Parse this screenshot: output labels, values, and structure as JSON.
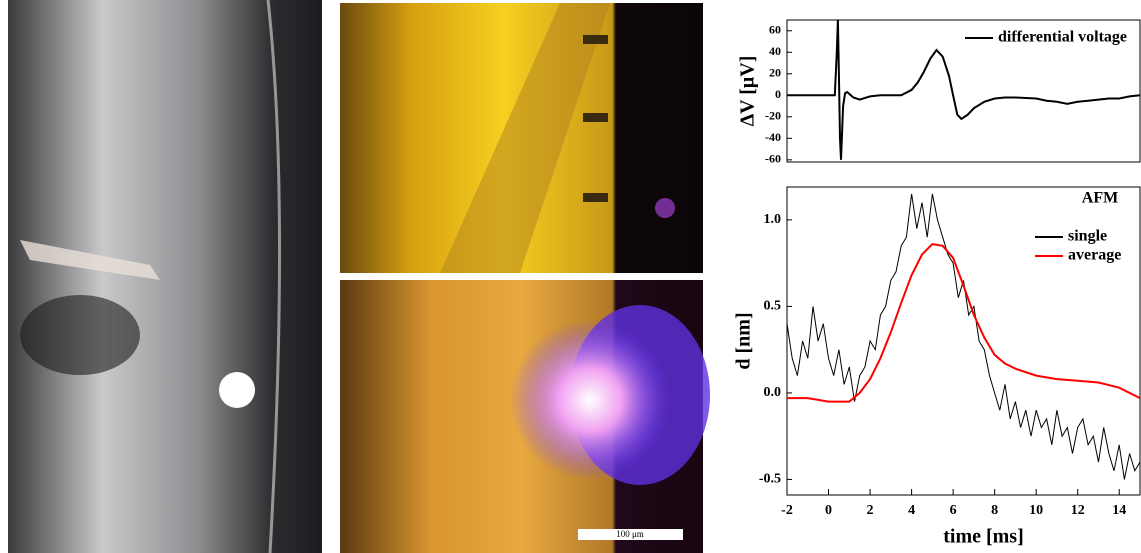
{
  "images": {
    "scale_bar_label": "100 μm"
  },
  "chart_data": [
    {
      "type": "line",
      "y_label": "ΔV [μV]",
      "xlim": [
        -2,
        15
      ],
      "ylim": [
        -62,
        70
      ],
      "yticks": [
        60,
        40,
        20,
        0,
        -20,
        -40,
        -60
      ],
      "legend": "upper right",
      "series": [
        {
          "name": "differential voltage",
          "color": "#000000",
          "x": [
            -2,
            -1,
            0,
            0.3,
            0.4,
            0.45,
            0.5,
            0.55,
            0.6,
            0.7,
            0.8,
            0.9,
            1.2,
            1.5,
            2,
            2.5,
            3,
            3.5,
            4,
            4.3,
            4.6,
            4.9,
            5.2,
            5.5,
            5.8,
            6,
            6.2,
            6.4,
            6.7,
            7,
            7.5,
            8,
            8.5,
            9,
            10,
            10.5,
            11,
            11.5,
            12,
            12.5,
            13,
            13.5,
            14,
            14.5,
            15
          ],
          "values": [
            0,
            0,
            0,
            0,
            40,
            70,
            20,
            -40,
            -60,
            -10,
            2,
            3,
            -2,
            -4,
            -1,
            0,
            0,
            0,
            5,
            12,
            22,
            34,
            42,
            36,
            18,
            0,
            -18,
            -22,
            -18,
            -12,
            -6,
            -3,
            -2,
            -2,
            -3,
            -5,
            -6,
            -8,
            -6,
            -5,
            -4,
            -3,
            -3,
            -1,
            0
          ]
        }
      ]
    },
    {
      "type": "line",
      "y_label": "d [nm]",
      "x_label": "time [ms]",
      "annotation": "AFM",
      "xlim": [
        -2,
        15
      ],
      "ylim": [
        -0.59,
        1.19
      ],
      "xticks": [
        -2,
        0,
        2,
        4,
        6,
        8,
        10,
        12,
        14
      ],
      "yticks": [
        -0.5,
        {
          "value": 0,
          "label": "0.0"
        },
        0.5,
        {
          "value": 1,
          "label": "1.0"
        }
      ],
      "legend": "upper right",
      "series": [
        {
          "name": "single",
          "color": "#000000",
          "x": [
            -2,
            -1.75,
            -1.5,
            -1.25,
            -1,
            -0.75,
            -0.5,
            -0.25,
            0,
            0.25,
            0.5,
            0.75,
            1,
            1.25,
            1.5,
            1.75,
            2,
            2.25,
            2.5,
            2.75,
            3,
            3.25,
            3.5,
            3.75,
            4,
            4.25,
            4.5,
            4.75,
            5,
            5.25,
            5.5,
            5.75,
            6,
            6.25,
            6.5,
            6.75,
            7,
            7.25,
            7.5,
            7.75,
            8,
            8.25,
            8.5,
            8.75,
            9,
            9.25,
            9.5,
            9.75,
            10,
            10.25,
            10.5,
            10.75,
            11,
            11.25,
            11.5,
            11.75,
            12,
            12.25,
            12.5,
            12.75,
            13,
            13.25,
            13.5,
            13.75,
            14,
            14.25,
            14.5,
            14.75,
            15
          ],
          "values": [
            0.4,
            0.2,
            0.1,
            0.3,
            0.2,
            0.5,
            0.3,
            0.4,
            0.2,
            0.1,
            0.25,
            0.05,
            0.15,
            -0.05,
            0.1,
            0.15,
            0.3,
            0.25,
            0.45,
            0.5,
            0.65,
            0.7,
            0.85,
            0.9,
            1.15,
            0.95,
            1.1,
            0.9,
            1.15,
            1.0,
            0.9,
            0.8,
            0.75,
            0.55,
            0.65,
            0.45,
            0.5,
            0.3,
            0.25,
            0.1,
            0.0,
            -0.1,
            0.05,
            -0.15,
            -0.05,
            -0.2,
            -0.1,
            -0.25,
            -0.1,
            -0.2,
            -0.15,
            -0.3,
            -0.1,
            -0.25,
            -0.2,
            -0.35,
            -0.2,
            -0.15,
            -0.3,
            -0.25,
            -0.4,
            -0.2,
            -0.35,
            -0.45,
            -0.3,
            -0.5,
            -0.35,
            -0.45,
            -0.4
          ]
        },
        {
          "name": "average",
          "color": "#ff0000",
          "x": [
            -2,
            -1,
            0,
            1,
            1.5,
            2,
            2.5,
            3,
            3.5,
            4,
            4.5,
            5,
            5.5,
            6,
            6.5,
            7,
            7.5,
            8,
            8.5,
            9,
            10,
            11,
            12,
            13,
            14,
            15
          ],
          "values": [
            -0.03,
            -0.03,
            -0.05,
            -0.05,
            0.0,
            0.08,
            0.2,
            0.35,
            0.52,
            0.68,
            0.8,
            0.86,
            0.85,
            0.78,
            0.62,
            0.45,
            0.32,
            0.22,
            0.17,
            0.14,
            0.1,
            0.08,
            0.07,
            0.06,
            0.03,
            -0.03
          ]
        }
      ]
    }
  ]
}
